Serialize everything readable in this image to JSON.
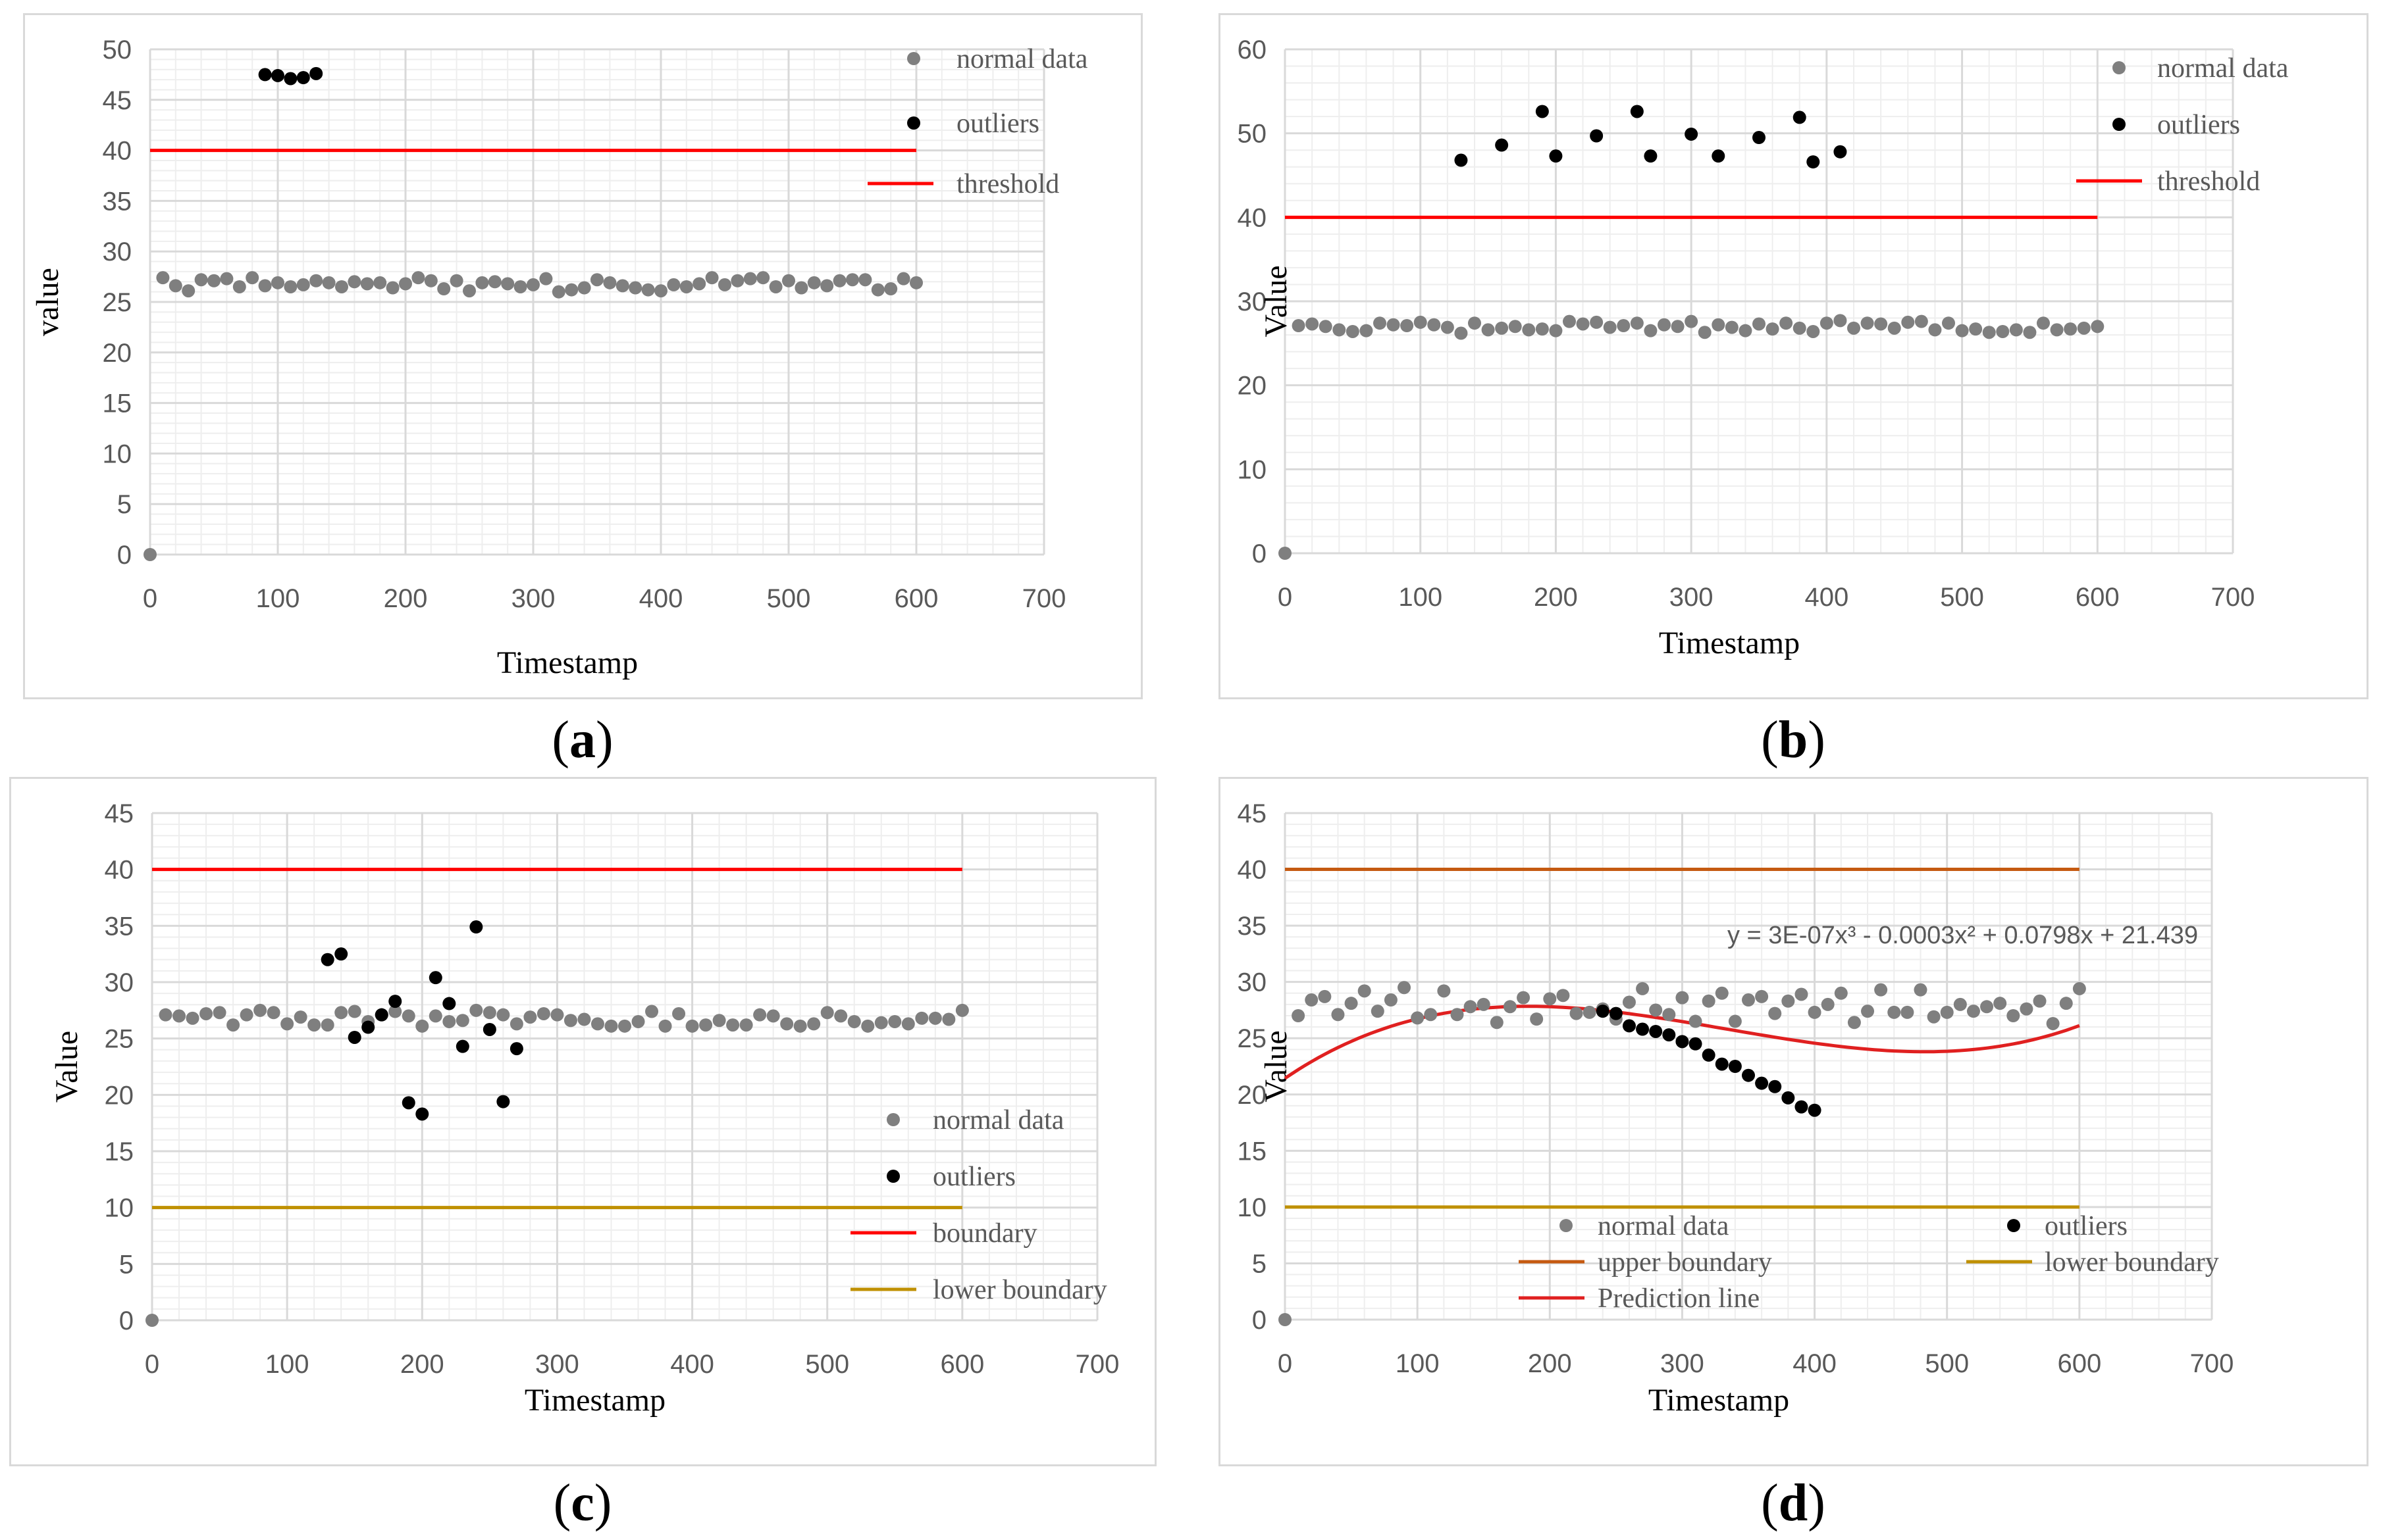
{
  "colors": {
    "normal": "#7f7f7f",
    "outlier": "#000000",
    "threshold": "#ff0000",
    "upper_boundary": "#c55a11",
    "lower_boundary": "#bf9000",
    "prediction": "#e02020",
    "grid_major": "#d9d9d9",
    "grid_minor": "#eeeeee"
  },
  "chart_data": [
    {
      "id": "a",
      "caption": "(a)",
      "type": "scatter",
      "title": "",
      "xlabel": "Timestamp",
      "ylabel": "value",
      "xlim": [
        0,
        700
      ],
      "ylim": [
        0,
        50
      ],
      "xticks": [
        0,
        100,
        200,
        300,
        400,
        500,
        600,
        700
      ],
      "yticks": [
        0,
        5,
        10,
        15,
        20,
        25,
        30,
        35,
        40,
        45,
        50
      ],
      "legend": [
        {
          "label": "normal data",
          "kind": "marker",
          "color_key": "normal"
        },
        {
          "label": "outliers",
          "kind": "marker",
          "color_key": "outlier"
        },
        {
          "label": "threshold",
          "kind": "line",
          "color_key": "threshold"
        }
      ],
      "series": [
        {
          "name": "normal data",
          "kind": "scatter",
          "color_key": "normal",
          "x": [
            0,
            10,
            20,
            30,
            40,
            50,
            60,
            70,
            80,
            90,
            100,
            110,
            120,
            130,
            140,
            150,
            160,
            170,
            180,
            190,
            200,
            210,
            220,
            230,
            240,
            250,
            260,
            270,
            280,
            290,
            300,
            310,
            320,
            330,
            340,
            350,
            360,
            370,
            380,
            390,
            400,
            410,
            420,
            430,
            440,
            450,
            460,
            470,
            480,
            490,
            500,
            510,
            520,
            530,
            540,
            550,
            560,
            570,
            580,
            590,
            600
          ],
          "y": [
            0,
            27.4,
            26.6,
            26.1,
            27.2,
            27.1,
            27.3,
            26.5,
            27.4,
            26.6,
            26.9,
            26.5,
            26.7,
            27.1,
            26.9,
            26.5,
            27.0,
            26.8,
            26.9,
            26.4,
            26.8,
            27.4,
            27.1,
            26.3,
            27.1,
            26.1,
            26.9,
            27.0,
            26.8,
            26.5,
            26.7,
            27.3,
            26.0,
            26.2,
            26.4,
            27.2,
            26.9,
            26.6,
            26.4,
            26.2,
            26.1,
            26.7,
            26.5,
            26.8,
            27.4,
            26.7,
            27.1,
            27.3,
            27.4,
            26.5,
            27.1,
            26.4,
            26.9,
            26.6,
            27.1,
            27.2,
            27.2,
            26.2,
            26.3,
            27.3,
            26.9
          ]
        },
        {
          "name": "outliers",
          "kind": "scatter",
          "color_key": "outlier",
          "x": [
            90,
            100,
            110,
            120,
            130
          ],
          "y": [
            47.5,
            47.4,
            47.1,
            47.2,
            47.6
          ]
        },
        {
          "name": "threshold",
          "kind": "line",
          "color_key": "threshold",
          "x": [
            0,
            600
          ],
          "y": [
            40,
            40
          ]
        }
      ]
    },
    {
      "id": "b",
      "caption": "(b)",
      "type": "scatter",
      "title": "",
      "xlabel": "Timestamp",
      "ylabel": "Value",
      "xlim": [
        0,
        700
      ],
      "ylim": [
        0,
        60
      ],
      "xticks": [
        0,
        100,
        200,
        300,
        400,
        500,
        600,
        700
      ],
      "yticks": [
        0,
        10,
        20,
        30,
        40,
        50,
        60
      ],
      "legend": [
        {
          "label": "normal data",
          "kind": "marker",
          "color_key": "normal"
        },
        {
          "label": "outliers",
          "kind": "marker",
          "color_key": "outlier"
        },
        {
          "label": "threshold",
          "kind": "line",
          "color_key": "threshold"
        }
      ],
      "series": [
        {
          "name": "normal data",
          "kind": "scatter",
          "color_key": "normal",
          "x": [
            0,
            10,
            20,
            30,
            40,
            50,
            60,
            70,
            80,
            90,
            100,
            110,
            120,
            130,
            140,
            150,
            160,
            170,
            180,
            190,
            200,
            210,
            220,
            230,
            240,
            250,
            260,
            270,
            280,
            290,
            300,
            310,
            320,
            330,
            340,
            350,
            360,
            370,
            380,
            390,
            400,
            410,
            420,
            430,
            440,
            450,
            460,
            470,
            480,
            490,
            500,
            510,
            520,
            530,
            540,
            550,
            560,
            570,
            580,
            590,
            600
          ],
          "y": [
            0,
            27.1,
            27.3,
            27.0,
            26.6,
            26.4,
            26.5,
            27.4,
            27.2,
            27.1,
            27.5,
            27.2,
            26.9,
            26.2,
            27.4,
            26.6,
            26.8,
            27.0,
            26.6,
            26.7,
            26.5,
            27.6,
            27.3,
            27.5,
            26.9,
            27.1,
            27.4,
            26.5,
            27.2,
            27.0,
            27.6,
            26.3,
            27.2,
            26.9,
            26.5,
            27.3,
            26.7,
            27.4,
            26.8,
            26.4,
            27.4,
            27.7,
            26.8,
            27.4,
            27.3,
            26.8,
            27.5,
            27.6,
            26.6,
            27.4,
            26.5,
            26.7,
            26.3,
            26.4,
            26.6,
            26.3,
            27.4,
            26.6,
            26.7,
            26.8,
            27.0
          ]
        },
        {
          "name": "outliers",
          "kind": "scatter",
          "color_key": "outlier",
          "x": [
            130,
            160,
            190,
            200,
            230,
            260,
            270,
            300,
            320,
            350,
            380,
            390,
            410
          ],
          "y": [
            46.8,
            48.6,
            52.6,
            47.3,
            49.7,
            52.6,
            47.3,
            49.9,
            47.3,
            49.5,
            51.9,
            46.6,
            47.8
          ]
        },
        {
          "name": "threshold",
          "kind": "line",
          "color_key": "threshold",
          "x": [
            0,
            600
          ],
          "y": [
            40,
            40
          ]
        }
      ]
    },
    {
      "id": "c",
      "caption": "(c)",
      "type": "scatter",
      "title": "",
      "xlabel": "Timestamp",
      "ylabel": "Value",
      "xlim": [
        0,
        700
      ],
      "ylim": [
        0,
        45
      ],
      "xticks": [
        0,
        100,
        200,
        300,
        400,
        500,
        600,
        700
      ],
      "yticks": [
        0,
        5,
        10,
        15,
        20,
        25,
        30,
        35,
        40,
        45
      ],
      "legend": [
        {
          "label": "normal data",
          "kind": "marker",
          "color_key": "normal"
        },
        {
          "label": "outliers",
          "kind": "marker",
          "color_key": "outlier"
        },
        {
          "label": "boundary",
          "kind": "line",
          "color_key": "threshold"
        },
        {
          "label": "lower boundary",
          "kind": "line",
          "color_key": "lower_boundary"
        }
      ],
      "series": [
        {
          "name": "normal data",
          "kind": "scatter",
          "color_key": "normal",
          "x": [
            0,
            10,
            20,
            30,
            40,
            50,
            60,
            70,
            80,
            90,
            100,
            110,
            120,
            130,
            140,
            150,
            160,
            170,
            180,
            190,
            200,
            210,
            220,
            230,
            240,
            250,
            260,
            270,
            280,
            290,
            300,
            310,
            320,
            330,
            340,
            350,
            360,
            370,
            380,
            390,
            400,
            410,
            420,
            430,
            440,
            450,
            460,
            470,
            480,
            490,
            500,
            510,
            520,
            530,
            540,
            550,
            560,
            570,
            580,
            590,
            600
          ],
          "y": [
            0,
            27.1,
            27.0,
            26.8,
            27.2,
            27.3,
            26.2,
            27.1,
            27.5,
            27.3,
            26.3,
            26.9,
            26.2,
            26.2,
            27.3,
            27.4,
            26.5,
            27.1,
            27.4,
            27.0,
            26.1,
            27.0,
            26.5,
            26.6,
            27.5,
            27.3,
            27.1,
            26.3,
            26.9,
            27.2,
            27.1,
            26.6,
            26.7,
            26.3,
            26.1,
            26.1,
            26.5,
            27.4,
            26.1,
            27.2,
            26.1,
            26.2,
            26.6,
            26.2,
            26.2,
            27.1,
            27.0,
            26.3,
            26.1,
            26.3,
            27.3,
            27.0,
            26.5,
            26.1,
            26.4,
            26.5,
            26.3,
            26.8,
            26.8,
            26.7,
            27.5
          ]
        },
        {
          "name": "outliers",
          "kind": "scatter",
          "color_key": "outlier",
          "x": [
            130,
            140,
            150,
            160,
            170,
            180,
            190,
            200,
            210,
            220,
            230,
            240,
            250,
            260,
            270
          ],
          "y": [
            32.0,
            32.5,
            25.1,
            26.0,
            27.1,
            28.3,
            19.3,
            18.3,
            30.4,
            28.1,
            24.3,
            34.9,
            25.8,
            19.4,
            24.1
          ]
        },
        {
          "name": "boundary",
          "kind": "line",
          "color_key": "threshold",
          "x": [
            0,
            600
          ],
          "y": [
            40,
            40
          ]
        },
        {
          "name": "lower boundary",
          "kind": "line",
          "color_key": "lower_boundary",
          "x": [
            0,
            600
          ],
          "y": [
            10,
            10
          ]
        }
      ]
    },
    {
      "id": "d",
      "caption": "(d)",
      "type": "scatter",
      "title": "",
      "xlabel": "Timestamp",
      "ylabel": "Value",
      "xlim": [
        0,
        700
      ],
      "ylim": [
        0,
        45
      ],
      "xticks": [
        0,
        100,
        200,
        300,
        400,
        500,
        600,
        700
      ],
      "yticks": [
        0,
        5,
        10,
        15,
        20,
        25,
        30,
        35,
        40,
        45
      ],
      "trendline_label": "y = 3E-07x³ - 0.0003x² + 0.0798x + 21.439",
      "trendline_coefficients": [
        3e-07,
        -0.0003,
        0.0798,
        21.439
      ],
      "legend": [
        {
          "label": "normal data",
          "kind": "marker",
          "color_key": "normal"
        },
        {
          "label": "outliers",
          "kind": "marker",
          "color_key": "outlier"
        },
        {
          "label": "upper boundary",
          "kind": "line",
          "color_key": "upper_boundary"
        },
        {
          "label": "lower boundary",
          "kind": "line",
          "color_key": "lower_boundary"
        },
        {
          "label": "Prediction line",
          "kind": "line",
          "color_key": "prediction"
        }
      ],
      "series": [
        {
          "name": "normal data",
          "kind": "scatter",
          "color_key": "normal",
          "x": [
            0,
            10,
            20,
            30,
            40,
            50,
            60,
            70,
            80,
            90,
            100,
            110,
            120,
            130,
            140,
            150,
            160,
            170,
            180,
            190,
            200,
            210,
            220,
            230,
            240,
            250,
            260,
            270,
            280,
            290,
            300,
            310,
            320,
            330,
            340,
            350,
            360,
            370,
            380,
            390,
            400,
            410,
            420,
            430,
            440,
            450,
            460,
            470,
            480,
            490,
            500,
            510,
            520,
            530,
            540,
            550,
            560,
            570,
            580,
            590,
            600
          ],
          "y": [
            0,
            27.0,
            28.4,
            28.7,
            27.1,
            28.1,
            29.2,
            27.4,
            28.4,
            29.5,
            26.8,
            27.1,
            29.2,
            27.1,
            27.8,
            28.0,
            26.4,
            27.8,
            28.6,
            26.7,
            28.5,
            28.8,
            27.2,
            27.3,
            27.6,
            26.7,
            28.2,
            29.4,
            27.5,
            27.1,
            28.6,
            26.5,
            28.3,
            29.0,
            26.5,
            28.4,
            28.7,
            27.2,
            28.3,
            28.9,
            27.3,
            28.0,
            29.0,
            26.4,
            27.4,
            29.3,
            27.3,
            27.3,
            29.3,
            26.9,
            27.3,
            28.0,
            27.4,
            27.8,
            28.1,
            27.0,
            27.6,
            28.3,
            26.3,
            28.1,
            29.4
          ]
        },
        {
          "name": "outliers",
          "kind": "scatter",
          "color_key": "outlier",
          "x": [
            240,
            250,
            260,
            270,
            280,
            290,
            300,
            310,
            320,
            330,
            340,
            350,
            360,
            370,
            380,
            390,
            400
          ],
          "y": [
            27.4,
            27.2,
            26.1,
            25.8,
            25.6,
            25.3,
            24.7,
            24.5,
            23.5,
            22.7,
            22.5,
            21.7,
            21.0,
            20.7,
            19.7,
            18.9,
            18.6
          ]
        },
        {
          "name": "upper boundary",
          "kind": "line",
          "color_key": "upper_boundary",
          "x": [
            0,
            600
          ],
          "y": [
            40,
            40
          ]
        },
        {
          "name": "lower boundary",
          "kind": "line",
          "color_key": "lower_boundary",
          "x": [
            0,
            600
          ],
          "y": [
            10,
            10
          ]
        }
      ]
    }
  ]
}
